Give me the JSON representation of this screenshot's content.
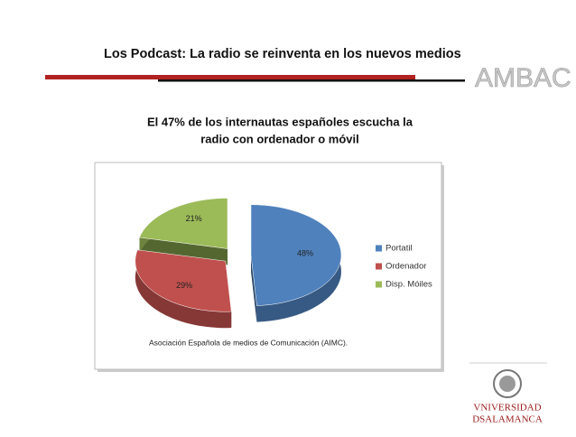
{
  "header": {
    "title": "Los Podcast: La radio se reinventa en los nuevos medios",
    "brand": "AMBAC"
  },
  "subtitle_lines": [
    "El 47% de los internautas españoles escucha la",
    "radio con ordenador o móvil"
  ],
  "chart_data": {
    "type": "pie",
    "categories": [
      "Portatil",
      "Ordenador",
      "Disp. Móiles"
    ],
    "values": [
      48,
      29,
      21
    ],
    "value_labels": [
      "48%",
      "29%",
      "21%"
    ],
    "colors": [
      "#4f81bd",
      "#c0504d",
      "#9bbb59"
    ],
    "legend": "right",
    "caption": "Asociación Española de medios de Comunicación (AIMC)."
  },
  "logo": {
    "line1": "VNIVERSIDAD",
    "line2": "DSALAMANCA"
  }
}
